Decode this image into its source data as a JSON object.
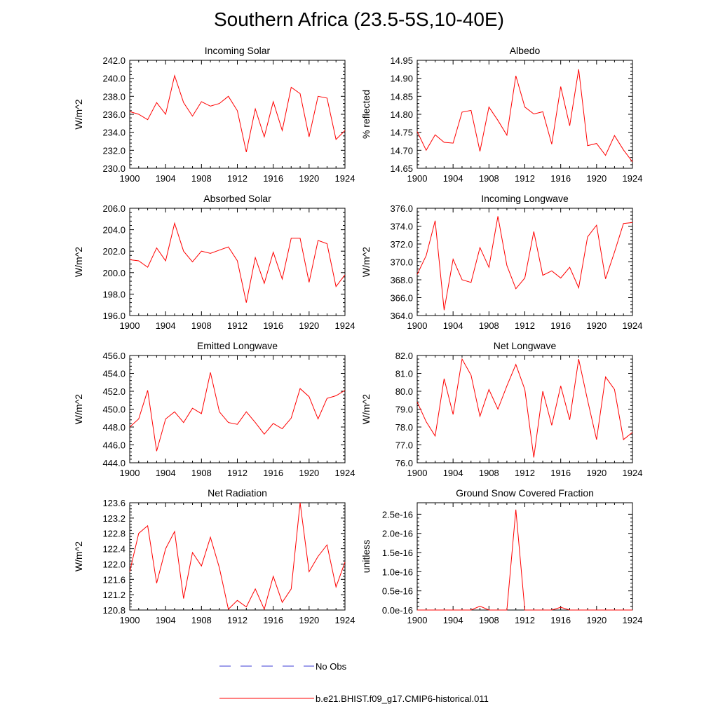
{
  "title": "Southern Africa (23.5-5S,10-40E)",
  "colors": {
    "model_line": "#ff0000",
    "obs_line": "#3b3bd6",
    "axis": "#000000"
  },
  "legend": [
    {
      "label": "No Obs",
      "style": "dashed",
      "color": "#3b3bd6"
    },
    {
      "label": "b.e21.BHIST.f09_g17.CMIP6-historical.011",
      "style": "solid",
      "color": "#ff0000"
    }
  ],
  "chart_data": [
    {
      "type": "line",
      "title": "Incoming Solar",
      "ylabel": "W/m^2",
      "xlabel": "",
      "xlim": [
        1900,
        1924
      ],
      "xticks": [
        1900,
        1904,
        1908,
        1912,
        1916,
        1920,
        1924
      ],
      "ylim": [
        230.0,
        242.0
      ],
      "yticks": [
        "230.0",
        "232.0",
        "234.0",
        "236.0",
        "238.0",
        "240.0",
        "242.0"
      ],
      "x": [
        1900,
        1901,
        1902,
        1903,
        1904,
        1905,
        1906,
        1907,
        1908,
        1909,
        1910,
        1911,
        1912,
        1913,
        1914,
        1915,
        1916,
        1917,
        1918,
        1919,
        1920,
        1921,
        1922,
        1923,
        1924
      ],
      "series": [
        {
          "values": [
            236.3,
            236.0,
            235.4,
            237.3,
            236.0,
            240.3,
            237.3,
            235.8,
            237.4,
            236.9,
            237.2,
            238.0,
            236.4,
            231.8,
            236.6,
            233.5,
            237.4,
            234.2,
            239.0,
            238.3,
            233.5,
            238.0,
            237.8,
            233.2,
            234.2
          ]
        }
      ]
    },
    {
      "type": "line",
      "title": "Albedo",
      "ylabel": "% reflected",
      "xlabel": "",
      "xlim": [
        1900,
        1924
      ],
      "xticks": [
        1900,
        1904,
        1908,
        1912,
        1916,
        1920,
        1924
      ],
      "ylim": [
        14.65,
        14.95
      ],
      "yticks": [
        "14.65",
        "14.70",
        "14.75",
        "14.80",
        "14.85",
        "14.90",
        "14.95"
      ],
      "x": [
        1900,
        1901,
        1902,
        1903,
        1904,
        1905,
        1906,
        1907,
        1908,
        1909,
        1910,
        1911,
        1912,
        1913,
        1914,
        1915,
        1916,
        1917,
        1918,
        1919,
        1920,
        1921,
        1922,
        1923,
        1924
      ],
      "series": [
        {
          "values": [
            14.752,
            14.7,
            14.743,
            14.722,
            14.72,
            14.806,
            14.811,
            14.697,
            14.82,
            14.783,
            14.742,
            14.907,
            14.82,
            14.801,
            14.807,
            14.717,
            14.877,
            14.768,
            14.925,
            14.713,
            14.719,
            14.686,
            14.741,
            14.701,
            14.668
          ]
        }
      ]
    },
    {
      "type": "line",
      "title": "Absorbed Solar",
      "ylabel": "W/m^2",
      "xlabel": "",
      "xlim": [
        1900,
        1924
      ],
      "xticks": [
        1900,
        1904,
        1908,
        1912,
        1916,
        1920,
        1924
      ],
      "ylim": [
        196.0,
        206.0
      ],
      "yticks": [
        "196.0",
        "198.0",
        "200.0",
        "202.0",
        "204.0",
        "206.0"
      ],
      "x": [
        1900,
        1901,
        1902,
        1903,
        1904,
        1905,
        1906,
        1907,
        1908,
        1909,
        1910,
        1911,
        1912,
        1913,
        1914,
        1915,
        1916,
        1917,
        1918,
        1919,
        1920,
        1921,
        1922,
        1923,
        1924
      ],
      "series": [
        {
          "values": [
            201.2,
            201.1,
            200.5,
            202.3,
            201.1,
            204.6,
            202.0,
            201.0,
            202.0,
            201.8,
            202.1,
            202.4,
            201.1,
            197.2,
            201.4,
            199.0,
            201.9,
            199.4,
            203.2,
            203.2,
            199.1,
            203.0,
            202.7,
            198.7,
            199.8
          ]
        }
      ]
    },
    {
      "type": "line",
      "title": "Incoming Longwave",
      "ylabel": "W/m^2",
      "xlabel": "",
      "xlim": [
        1900,
        1924
      ],
      "xticks": [
        1900,
        1904,
        1908,
        1912,
        1916,
        1920,
        1924
      ],
      "ylim": [
        364.0,
        376.0
      ],
      "yticks": [
        "364.0",
        "366.0",
        "368.0",
        "370.0",
        "372.0",
        "374.0",
        "376.0"
      ],
      "x": [
        1900,
        1901,
        1902,
        1903,
        1904,
        1905,
        1906,
        1907,
        1908,
        1909,
        1910,
        1911,
        1912,
        1913,
        1914,
        1915,
        1916,
        1917,
        1918,
        1919,
        1920,
        1921,
        1922,
        1923,
        1924
      ],
      "series": [
        {
          "values": [
            368.6,
            370.7,
            374.6,
            364.6,
            370.3,
            368.0,
            367.7,
            371.6,
            369.4,
            375.1,
            369.6,
            367.0,
            368.2,
            373.4,
            368.5,
            369.0,
            368.2,
            369.4,
            367.1,
            372.8,
            374.1,
            368.1,
            371.1,
            374.3,
            374.4
          ]
        }
      ]
    },
    {
      "type": "line",
      "title": "Emitted Longwave",
      "ylabel": "W/m^2",
      "xlabel": "",
      "xlim": [
        1900,
        1924
      ],
      "xticks": [
        1900,
        1904,
        1908,
        1912,
        1916,
        1920,
        1924
      ],
      "ylim": [
        444.0,
        456.0
      ],
      "yticks": [
        "444.0",
        "446.0",
        "448.0",
        "450.0",
        "452.0",
        "454.0",
        "456.0"
      ],
      "x": [
        1900,
        1901,
        1902,
        1903,
        1904,
        1905,
        1906,
        1907,
        1908,
        1909,
        1910,
        1911,
        1912,
        1913,
        1914,
        1915,
        1916,
        1917,
        1918,
        1919,
        1920,
        1921,
        1922,
        1923,
        1924
      ],
      "series": [
        {
          "values": [
            448.0,
            448.9,
            452.1,
            445.3,
            448.9,
            449.7,
            448.5,
            450.1,
            449.5,
            454.1,
            449.7,
            448.5,
            448.3,
            449.7,
            448.5,
            447.2,
            448.4,
            447.8,
            449.0,
            452.3,
            451.4,
            448.9,
            451.2,
            451.5,
            452.1
          ]
        }
      ]
    },
    {
      "type": "line",
      "title": "Net Longwave",
      "ylabel": "W/m^2",
      "xlabel": "",
      "xlim": [
        1900,
        1924
      ],
      "xticks": [
        1900,
        1904,
        1908,
        1912,
        1916,
        1920,
        1924
      ],
      "ylim": [
        76.0,
        82.0
      ],
      "yticks": [
        "76.0",
        "77.0",
        "78.0",
        "79.0",
        "80.0",
        "81.0",
        "82.0"
      ],
      "x": [
        1900,
        1901,
        1902,
        1903,
        1904,
        1905,
        1906,
        1907,
        1908,
        1909,
        1910,
        1911,
        1912,
        1913,
        1914,
        1915,
        1916,
        1917,
        1918,
        1919,
        1920,
        1921,
        1922,
        1923,
        1924
      ],
      "series": [
        {
          "values": [
            79.4,
            78.3,
            77.5,
            80.7,
            78.7,
            81.8,
            80.9,
            78.6,
            80.1,
            79.0,
            80.3,
            81.5,
            80.1,
            76.3,
            80.0,
            78.1,
            80.3,
            78.4,
            81.8,
            79.5,
            77.3,
            80.8,
            80.1,
            77.3,
            77.7
          ]
        }
      ]
    },
    {
      "type": "line",
      "title": "Net Radiation",
      "ylabel": "W/m^2",
      "xlabel": "",
      "xlim": [
        1900,
        1924
      ],
      "xticks": [
        1900,
        1904,
        1908,
        1912,
        1916,
        1920,
        1924
      ],
      "ylim": [
        120.8,
        123.6
      ],
      "yticks": [
        "120.8",
        "121.2",
        "121.6",
        "122.0",
        "122.4",
        "122.8",
        "123.2",
        "123.6"
      ],
      "x": [
        1900,
        1901,
        1902,
        1903,
        1904,
        1905,
        1906,
        1907,
        1908,
        1909,
        1910,
        1911,
        1912,
        1913,
        1914,
        1915,
        1916,
        1917,
        1918,
        1919,
        1920,
        1921,
        1922,
        1923,
        1924
      ],
      "series": [
        {
          "values": [
            121.8,
            122.8,
            123.0,
            121.5,
            122.4,
            122.85,
            121.1,
            122.3,
            121.95,
            122.7,
            121.9,
            120.82,
            121.05,
            120.88,
            121.35,
            120.82,
            121.68,
            121.0,
            121.35,
            123.6,
            121.8,
            122.2,
            122.5,
            121.4,
            122.05
          ]
        }
      ]
    },
    {
      "type": "line",
      "title": "Ground Snow Covered Fraction",
      "ylabel": "unitless",
      "xlabel": "",
      "xlim": [
        1900,
        1924
      ],
      "xticks": [
        1900,
        1904,
        1908,
        1912,
        1916,
        1920,
        1924
      ],
      "ylim": [
        0,
        2.8e-16
      ],
      "yticks": [
        "0.0e-16",
        "0.5e-16",
        "1.0e-16",
        "1.5e-16",
        "2.0e-16",
        "2.5e-16"
      ],
      "ytick_values": [
        0,
        5e-17,
        1e-16,
        1.5e-16,
        2e-16,
        2.5e-16
      ],
      "x": [
        1900,
        1901,
        1902,
        1903,
        1904,
        1905,
        1906,
        1907,
        1908,
        1909,
        1910,
        1911,
        1912,
        1913,
        1914,
        1915,
        1916,
        1917,
        1918,
        1919,
        1920,
        1921,
        1922,
        1923,
        1924
      ],
      "series": [
        {
          "values": [
            0,
            0,
            0,
            0,
            0,
            0,
            0,
            1e-17,
            0,
            0,
            0,
            2.62e-16,
            0,
            0,
            0,
            0,
            7e-18,
            0,
            0,
            0,
            0,
            0,
            0,
            0,
            0
          ]
        }
      ]
    }
  ]
}
